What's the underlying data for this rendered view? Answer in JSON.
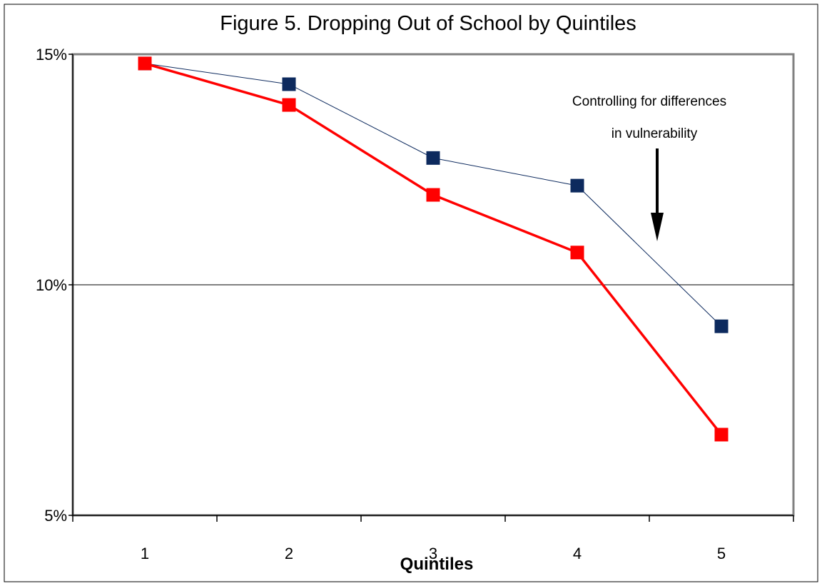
{
  "chart_data": {
    "type": "line",
    "title": "Figure 5. Dropping Out of School by Quintiles",
    "xlabel": "Quintiles",
    "ylabel": "",
    "categories": [
      "1",
      "2",
      "3",
      "4",
      "5"
    ],
    "ylim": [
      0.05,
      0.15
    ],
    "yticks": [
      0.05,
      0.1,
      0.15
    ],
    "ytick_labels": [
      "5%",
      "10%",
      "15%"
    ],
    "gridlines": [
      0.1
    ],
    "legend": "none",
    "series": [
      {
        "values": [
          0.148,
          0.1435,
          0.1275,
          0.1215,
          0.091
        ],
        "color": "#0d2a5e",
        "line_width": "thin",
        "marker": "square"
      },
      {
        "values": [
          0.148,
          0.139,
          0.1195,
          0.107,
          0.0675
        ],
        "color": "#ff0000",
        "line_width": "thick",
        "marker": "square"
      }
    ],
    "annotations": [
      {
        "lines": [
          "Controlling for differences",
          "in vulnerability"
        ],
        "arrow": "down"
      }
    ]
  }
}
